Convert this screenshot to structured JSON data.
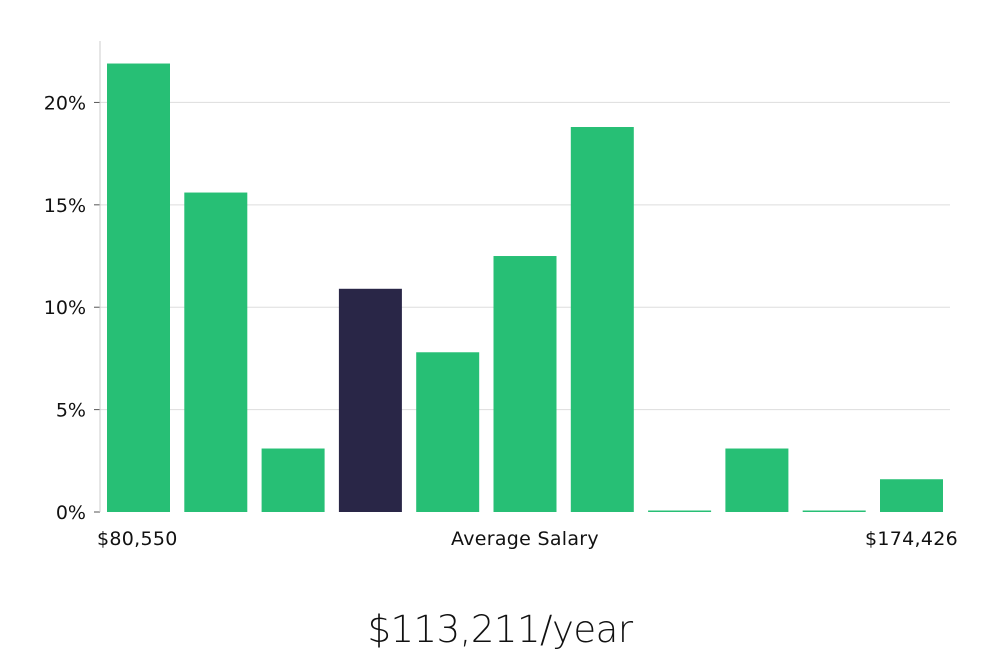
{
  "chart_data": {
    "type": "bar",
    "categories": [
      "1",
      "2",
      "3",
      "4",
      "5",
      "6",
      "7",
      "8",
      "9",
      "10",
      "11"
    ],
    "values": [
      21.9,
      15.6,
      3.1,
      10.9,
      7.8,
      12.5,
      18.8,
      0,
      3.1,
      0,
      1.6
    ],
    "highlight_index": 3,
    "yticks": [
      "0%",
      "5%",
      "10%",
      "15%",
      "20%"
    ],
    "ytick_values": [
      0,
      5,
      10,
      15,
      20
    ],
    "ylim": [
      0,
      23
    ],
    "grid": true,
    "xlabel": "Average Salary",
    "x_min_label": "$80,550",
    "x_max_label": "$174,426",
    "colors": {
      "bar": "#27bf75",
      "highlight": "#292647",
      "grid": "#dddddd",
      "axis": "#cccccc"
    }
  },
  "summary": {
    "salary": "$113,211/year"
  }
}
